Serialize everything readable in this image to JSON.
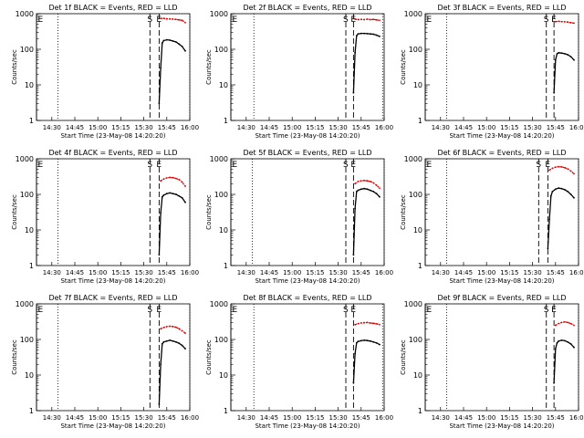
{
  "figure": {
    "background": "#ffffff",
    "events_color": "#000000",
    "lld_color": "#dd0000",
    "ylabel": "Counts/sec",
    "xlabel": "Start Time (23-May-08 14:20:20)",
    "x_tick_labels": [
      "14:30",
      "14:45",
      "15:00",
      "15:15",
      "15:30",
      "15:45",
      "16:00"
    ],
    "y_tick_labels": [
      "1",
      "10",
      "100",
      "1000"
    ]
  },
  "chart_data": [
    {
      "type": "line",
      "title": "Det 1f BLACK = Events, RED = LLD",
      "xlabel": "Start Time (23-May-08 14:20:20)",
      "ylabel": "Counts/sec",
      "xlim": [
        "14:20",
        "16:00"
      ],
      "ylim": [
        1,
        1000
      ],
      "yscale": "log",
      "x_ticks": [
        "14:30",
        "14:45",
        "15:00",
        "15:15",
        "15:30",
        "15:45",
        "16:00"
      ],
      "y_ticks": [
        1,
        10,
        100,
        1000
      ],
      "markers": [
        {
          "time": "14:20",
          "style": "solid",
          "label": "E"
        },
        {
          "time": "14:34",
          "style": "dotted",
          "label": ""
        },
        {
          "time": "15:34",
          "style": "dashed",
          "label": "S"
        },
        {
          "time": "15:40",
          "style": "dashed",
          "label": "E"
        },
        {
          "time": "16:00",
          "style": "dotted",
          "label": ""
        }
      ],
      "series": [
        {
          "name": "LLD",
          "color": "#dd0000",
          "x": [
            "15:41",
            "15:43",
            "15:45",
            "15:47",
            "15:49",
            "15:51",
            "15:53",
            "15:55",
            "15:57"
          ],
          "y": [
            740,
            740,
            720,
            710,
            700,
            690,
            670,
            650,
            560
          ]
        },
        {
          "name": "Events",
          "color": "#000000",
          "x": [
            "15:40",
            "15:41",
            "15:42",
            "15:43",
            "15:45",
            "15:47",
            "15:49",
            "15:51",
            "15:53",
            "15:55",
            "15:57"
          ],
          "y": [
            3,
            30,
            150,
            175,
            185,
            180,
            170,
            160,
            140,
            120,
            90
          ]
        }
      ]
    },
    {
      "type": "line",
      "title": "Det 2f BLACK = Events, RED = LLD",
      "xlabel": "Start Time (23-May-08 14:20:20)",
      "ylabel": "Counts/sec",
      "xlim": [
        "14:20",
        "16:00"
      ],
      "ylim": [
        1,
        1000
      ],
      "yscale": "log",
      "x_ticks": [
        "14:30",
        "14:45",
        "15:00",
        "15:15",
        "15:30",
        "15:45",
        "16:00"
      ],
      "y_ticks": [
        1,
        10,
        100,
        1000
      ],
      "markers": [
        {
          "time": "14:20",
          "style": "solid",
          "label": "E"
        },
        {
          "time": "14:35",
          "style": "dotted",
          "label": ""
        },
        {
          "time": "15:35",
          "style": "dashed",
          "label": "S"
        },
        {
          "time": "15:40",
          "style": "dashed",
          "label": "E"
        },
        {
          "time": "15:59",
          "style": "dotted",
          "label": ""
        }
      ],
      "series": [
        {
          "name": "LLD",
          "color": "#dd0000",
          "x": [
            "15:41",
            "15:43",
            "15:45",
            "15:47",
            "15:49",
            "15:51",
            "15:53",
            "15:55",
            "15:57"
          ],
          "y": [
            700,
            680,
            690,
            680,
            700,
            680,
            690,
            670,
            650
          ]
        },
        {
          "name": "Events",
          "color": "#000000",
          "x": [
            "15:40",
            "15:41",
            "15:42",
            "15:43",
            "15:45",
            "15:47",
            "15:49",
            "15:51",
            "15:53",
            "15:55",
            "15:57"
          ],
          "y": [
            6,
            80,
            240,
            270,
            280,
            280,
            275,
            270,
            265,
            250,
            230
          ]
        }
      ]
    },
    {
      "type": "line",
      "title": "Det 3f BLACK = Events, RED = LLD",
      "xlabel": "Start Time (23-May-08 14:20:20)",
      "ylabel": "Counts/sec",
      "xlim": [
        "14:20",
        "16:00"
      ],
      "ylim": [
        1,
        1000
      ],
      "yscale": "log",
      "x_ticks": [
        "14:30",
        "14:45",
        "15:00",
        "15:15",
        "15:30",
        "15:45",
        "16:00"
      ],
      "y_ticks": [
        1,
        10,
        100,
        1000
      ],
      "markers": [
        {
          "time": "14:20",
          "style": "solid",
          "label": "E"
        },
        {
          "time": "14:34",
          "style": "dotted",
          "label": ""
        },
        {
          "time": "15:39",
          "style": "dashed",
          "label": "S"
        },
        {
          "time": "15:44",
          "style": "dashed",
          "label": "E"
        },
        {
          "time": "16:00",
          "style": "dotted",
          "label": ""
        }
      ],
      "series": [
        {
          "name": "LLD",
          "color": "#dd0000",
          "x": [
            "15:45",
            "15:47",
            "15:49",
            "15:51",
            "15:53",
            "15:55",
            "15:57"
          ],
          "y": [
            600,
            610,
            600,
            590,
            580,
            560,
            540
          ]
        },
        {
          "name": "Events",
          "color": "#000000",
          "x": [
            "15:44",
            "15:45",
            "15:46",
            "15:47",
            "15:49",
            "15:51",
            "15:53",
            "15:55",
            "15:57"
          ],
          "y": [
            6,
            50,
            75,
            80,
            78,
            75,
            70,
            62,
            50
          ]
        }
      ]
    },
    {
      "type": "line",
      "title": "Det 4f BLACK = Events, RED = LLD",
      "xlabel": "Start Time (23-May-08 14:20:20)",
      "ylabel": "Counts/sec",
      "xlim": [
        "14:20",
        "16:00"
      ],
      "ylim": [
        1,
        1000
      ],
      "yscale": "log",
      "x_ticks": [
        "14:30",
        "14:45",
        "15:00",
        "15:15",
        "15:30",
        "15:45",
        "16:00"
      ],
      "y_ticks": [
        1,
        10,
        100,
        1000
      ],
      "markers": [
        {
          "time": "14:20",
          "style": "solid",
          "label": "E"
        },
        {
          "time": "14:34",
          "style": "dotted",
          "label": ""
        },
        {
          "time": "15:34",
          "style": "dashed",
          "label": "S"
        },
        {
          "time": "15:40",
          "style": "dashed",
          "label": "E"
        },
        {
          "time": "16:00",
          "style": "dotted",
          "label": ""
        }
      ],
      "series": [
        {
          "name": "LLD",
          "color": "#dd0000",
          "x": [
            "15:41",
            "15:43",
            "15:45",
            "15:47",
            "15:49",
            "15:51",
            "15:53",
            "15:55",
            "15:57"
          ],
          "y": [
            240,
            270,
            290,
            300,
            295,
            280,
            260,
            220,
            170
          ]
        },
        {
          "name": "Events",
          "color": "#000000",
          "x": [
            "15:40",
            "15:41",
            "15:42",
            "15:43",
            "15:45",
            "15:47",
            "15:49",
            "15:51",
            "15:53",
            "15:55",
            "15:57"
          ],
          "y": [
            2,
            30,
            85,
            95,
            105,
            110,
            105,
            100,
            90,
            80,
            60
          ]
        }
      ]
    },
    {
      "type": "line",
      "title": "Det 5f BLACK = Events, RED = LLD",
      "xlabel": "Start Time (23-May-08 14:20:20)",
      "ylabel": "Counts/sec",
      "xlim": [
        "14:20",
        "16:00"
      ],
      "ylim": [
        1,
        1000
      ],
      "yscale": "log",
      "x_ticks": [
        "14:30",
        "14:45",
        "15:00",
        "15:15",
        "15:30",
        "15:45",
        "16:00"
      ],
      "y_ticks": [
        1,
        10,
        100,
        1000
      ],
      "markers": [
        {
          "time": "14:20",
          "style": "solid",
          "label": "E"
        },
        {
          "time": "14:34",
          "style": "dotted",
          "label": ""
        },
        {
          "time": "15:35",
          "style": "dashed",
          "label": "S"
        },
        {
          "time": "15:40",
          "style": "dashed",
          "label": "E"
        },
        {
          "time": "16:00",
          "style": "dotted",
          "label": ""
        }
      ],
      "series": [
        {
          "name": "LLD",
          "color": "#dd0000",
          "x": [
            "15:41",
            "15:43",
            "15:45",
            "15:47",
            "15:49",
            "15:51",
            "15:53",
            "15:55",
            "15:57"
          ],
          "y": [
            200,
            230,
            240,
            245,
            240,
            230,
            210,
            180,
            150
          ]
        },
        {
          "name": "Events",
          "color": "#000000",
          "x": [
            "15:40",
            "15:41",
            "15:42",
            "15:43",
            "15:45",
            "15:47",
            "15:49",
            "15:51",
            "15:53",
            "15:55",
            "15:57"
          ],
          "y": [
            2,
            40,
            120,
            130,
            140,
            145,
            140,
            130,
            120,
            105,
            85
          ]
        }
      ]
    },
    {
      "type": "line",
      "title": "Det 6f BLACK = Events, RED = LLD",
      "xlabel": "Start Time (23-May-08 14:20:20)",
      "ylabel": "Counts/sec",
      "xlim": [
        "14:20",
        "16:00"
      ],
      "ylim": [
        1,
        1000
      ],
      "yscale": "log",
      "x_ticks": [
        "14:30",
        "14:45",
        "15:00",
        "15:15",
        "15:30",
        "15:45",
        "16:00"
      ],
      "y_ticks": [
        1,
        10,
        100,
        1000
      ],
      "markers": [
        {
          "time": "14:20",
          "style": "solid",
          "label": "E"
        },
        {
          "time": "14:34",
          "style": "dotted",
          "label": ""
        },
        {
          "time": "15:34",
          "style": "dashed",
          "label": "S"
        },
        {
          "time": "15:40",
          "style": "dashed",
          "label": "E"
        },
        {
          "time": "16:00",
          "style": "dotted",
          "label": ""
        }
      ],
      "series": [
        {
          "name": "LLD",
          "color": "#dd0000",
          "x": [
            "15:41",
            "15:43",
            "15:45",
            "15:47",
            "15:49",
            "15:51",
            "15:53",
            "15:55",
            "15:57"
          ],
          "y": [
            480,
            540,
            580,
            600,
            590,
            560,
            520,
            450,
            380
          ]
        },
        {
          "name": "Events",
          "color": "#000000",
          "x": [
            "15:40",
            "15:41",
            "15:42",
            "15:43",
            "15:45",
            "15:47",
            "15:49",
            "15:51",
            "15:53",
            "15:55",
            "15:57"
          ],
          "y": [
            3,
            20,
            90,
            120,
            140,
            150,
            145,
            135,
            120,
            100,
            80
          ]
        }
      ]
    },
    {
      "type": "line",
      "title": "Det 7f BLACK = Events, RED = LLD",
      "xlabel": "Start Time (23-May-08 14:20:20)",
      "ylabel": "Counts/sec",
      "xlim": [
        "14:20",
        "16:00"
      ],
      "ylim": [
        1,
        1000
      ],
      "yscale": "log",
      "x_ticks": [
        "14:30",
        "14:45",
        "15:00",
        "15:15",
        "15:30",
        "15:45",
        "16:00"
      ],
      "y_ticks": [
        1,
        10,
        100,
        1000
      ],
      "markers": [
        {
          "time": "14:20",
          "style": "solid",
          "label": "E"
        },
        {
          "time": "14:34",
          "style": "dotted",
          "label": ""
        },
        {
          "time": "15:34",
          "style": "dashed",
          "label": "S"
        },
        {
          "time": "15:40",
          "style": "dashed",
          "label": "E"
        },
        {
          "time": "16:00",
          "style": "dotted",
          "label": ""
        }
      ],
      "series": [
        {
          "name": "LLD",
          "color": "#dd0000",
          "x": [
            "15:41",
            "15:43",
            "15:45",
            "15:47",
            "15:49",
            "15:51",
            "15:53",
            "15:55",
            "15:57"
          ],
          "y": [
            200,
            215,
            230,
            235,
            230,
            220,
            200,
            175,
            150
          ]
        },
        {
          "name": "Events",
          "color": "#000000",
          "x": [
            "15:40",
            "15:41",
            "15:42",
            "15:43",
            "15:45",
            "15:47",
            "15:49",
            "15:51",
            "15:53",
            "15:55",
            "15:57"
          ],
          "y": [
            1.5,
            20,
            75,
            85,
            90,
            95,
            90,
            85,
            78,
            68,
            55
          ]
        }
      ]
    },
    {
      "type": "line",
      "title": "Det 8f BLACK = Events, RED = LLD",
      "xlabel": "Start Time (23-May-08 14:20:20)",
      "ylabel": "Counts/sec",
      "xlim": [
        "14:20",
        "16:00"
      ],
      "ylim": [
        1,
        1000
      ],
      "yscale": "log",
      "x_ticks": [
        "14:30",
        "14:45",
        "15:00",
        "15:15",
        "15:30",
        "15:45",
        "16:00"
      ],
      "y_ticks": [
        1,
        10,
        100,
        1000
      ],
      "markers": [
        {
          "time": "14:20",
          "style": "solid",
          "label": "E"
        },
        {
          "time": "14:35",
          "style": "dotted",
          "label": ""
        },
        {
          "time": "15:35",
          "style": "dashed",
          "label": "S"
        },
        {
          "time": "15:40",
          "style": "dashed",
          "label": "E"
        },
        {
          "time": "15:59",
          "style": "dotted",
          "label": ""
        }
      ],
      "series": [
        {
          "name": "LLD",
          "color": "#dd0000",
          "x": [
            "15:41",
            "15:43",
            "15:45",
            "15:47",
            "15:49",
            "15:51",
            "15:53",
            "15:55",
            "15:57"
          ],
          "y": [
            260,
            280,
            290,
            295,
            300,
            290,
            285,
            275,
            260
          ]
        },
        {
          "name": "Events",
          "color": "#000000",
          "x": [
            "15:40",
            "15:41",
            "15:42",
            "15:43",
            "15:45",
            "15:47",
            "15:49",
            "15:51",
            "15:53",
            "15:55",
            "15:57"
          ],
          "y": [
            6,
            40,
            80,
            88,
            92,
            95,
            93,
            90,
            85,
            80,
            72
          ]
        }
      ]
    },
    {
      "type": "line",
      "title": "Det 9f BLACK = Events, RED = LLD",
      "xlabel": "Start Time (23-May-08 14:20:20)",
      "ylabel": "Counts/sec",
      "xlim": [
        "14:20",
        "16:00"
      ],
      "ylim": [
        1,
        1000
      ],
      "yscale": "log",
      "x_ticks": [
        "14:30",
        "14:45",
        "15:00",
        "15:15",
        "15:30",
        "15:45",
        "16:00"
      ],
      "y_ticks": [
        1,
        10,
        100,
        1000
      ],
      "markers": [
        {
          "time": "14:20",
          "style": "solid",
          "label": "E"
        },
        {
          "time": "14:34",
          "style": "dotted",
          "label": ""
        },
        {
          "time": "15:39",
          "style": "dashed",
          "label": "S"
        },
        {
          "time": "15:44",
          "style": "dashed",
          "label": "E"
        },
        {
          "time": "16:00",
          "style": "dotted",
          "label": ""
        }
      ],
      "series": [
        {
          "name": "LLD",
          "color": "#dd0000",
          "x": [
            "15:45",
            "15:47",
            "15:49",
            "15:51",
            "15:53",
            "15:55",
            "15:57"
          ],
          "y": [
            250,
            280,
            300,
            310,
            300,
            280,
            250
          ]
        },
        {
          "name": "Events",
          "color": "#000000",
          "x": [
            "15:44",
            "15:45",
            "15:46",
            "15:47",
            "15:49",
            "15:51",
            "15:53",
            "15:55",
            "15:57"
          ],
          "y": [
            6,
            55,
            80,
            90,
            95,
            92,
            85,
            75,
            60
          ]
        }
      ]
    }
  ]
}
